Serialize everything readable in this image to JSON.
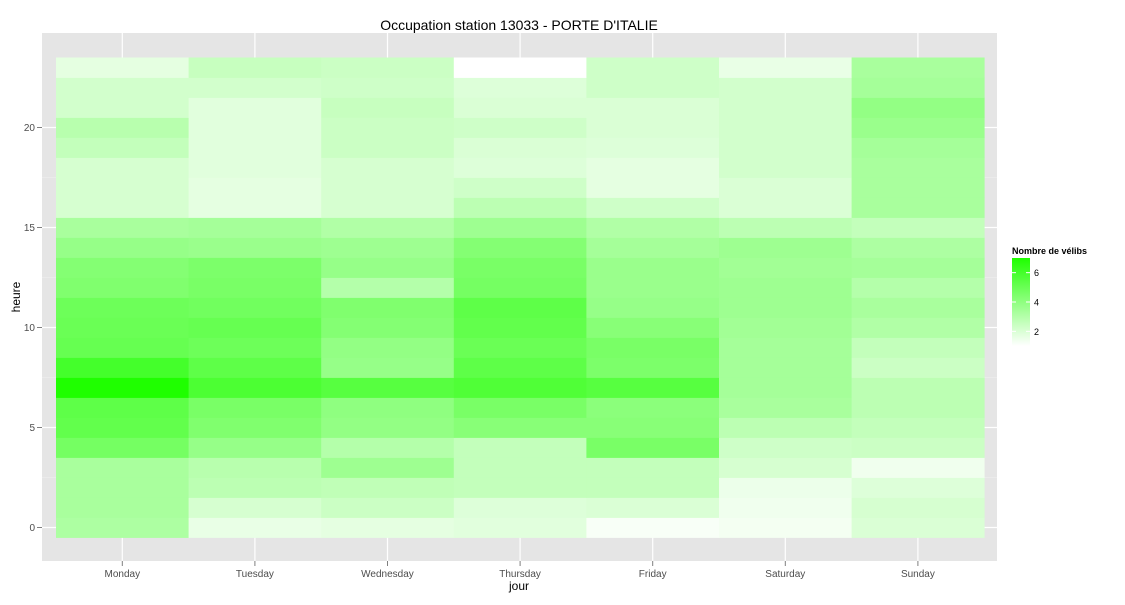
{
  "chart_data": {
    "type": "heatmap",
    "title": "Occupation station 13033 - PORTE D'ITALIE",
    "xlabel": "jour",
    "ylabel": "heure",
    "categories": [
      "Monday",
      "Tuesday",
      "Wednesday",
      "Thursday",
      "Friday",
      "Saturday",
      "Sunday"
    ],
    "hours": [
      0,
      1,
      2,
      3,
      4,
      5,
      6,
      7,
      8,
      9,
      10,
      11,
      12,
      13,
      14,
      15,
      16,
      17,
      18,
      19,
      20,
      21,
      22,
      23
    ],
    "y_ticks": [
      0,
      5,
      10,
      15,
      20
    ],
    "grid": true,
    "legend": {
      "title": "Nombre de vélibs",
      "position": "right",
      "ticks": [
        2,
        4,
        6
      ],
      "min": 1,
      "max": 7,
      "color_low": "#ffffff",
      "color_high": "#1fff00"
    },
    "values": [
      [
        3.2,
        1.6,
        1.7,
        1.8,
        1.2,
        1.3,
        2.0
      ],
      [
        3.3,
        2.1,
        2.4,
        1.9,
        2.0,
        1.4,
        2.1
      ],
      [
        3.3,
        2.8,
        2.7,
        2.6,
        2.6,
        1.5,
        1.9
      ],
      [
        3.3,
        2.9,
        3.6,
        2.6,
        2.6,
        2.1,
        1.4
      ],
      [
        4.7,
        3.8,
        3.0,
        2.6,
        4.6,
        2.3,
        2.4
      ],
      [
        5.2,
        4.4,
        3.9,
        4.2,
        4.2,
        2.8,
        2.6
      ],
      [
        5.3,
        4.6,
        4.0,
        4.6,
        4.1,
        3.3,
        2.8
      ],
      [
        7.0,
        5.8,
        5.5,
        5.7,
        5.5,
        3.4,
        2.8
      ],
      [
        6.0,
        5.3,
        3.8,
        5.3,
        4.5,
        3.4,
        2.4
      ],
      [
        5.1,
        4.9,
        3.9,
        5.0,
        4.6,
        3.4,
        2.6
      ],
      [
        5.0,
        5.1,
        4.3,
        5.2,
        4.2,
        3.5,
        3.1
      ],
      [
        4.9,
        4.8,
        4.4,
        5.3,
        3.8,
        3.6,
        3.3
      ],
      [
        4.4,
        4.6,
        3.0,
        4.7,
        3.7,
        3.6,
        3.0
      ],
      [
        4.3,
        4.5,
        3.8,
        4.6,
        3.7,
        3.5,
        3.4
      ],
      [
        3.8,
        3.7,
        3.6,
        4.3,
        3.4,
        3.6,
        3.2
      ],
      [
        3.3,
        3.4,
        3.1,
        3.6,
        3.1,
        2.8,
        2.6
      ],
      [
        2.1,
        1.7,
        2.1,
        2.8,
        2.3,
        2.0,
        3.3
      ],
      [
        2.1,
        1.7,
        2.1,
        2.3,
        1.7,
        2.0,
        3.3
      ],
      [
        2.1,
        1.8,
        2.1,
        1.9,
        1.7,
        2.2,
        3.3
      ],
      [
        2.6,
        1.8,
        2.4,
        2.0,
        1.9,
        2.2,
        3.4
      ],
      [
        2.9,
        1.8,
        2.4,
        2.3,
        2.0,
        2.2,
        3.7
      ],
      [
        2.2,
        1.8,
        2.5,
        2.0,
        2.0,
        2.2,
        3.9
      ],
      [
        2.2,
        2.2,
        2.3,
        1.9,
        2.3,
        2.2,
        3.4
      ],
      [
        1.7,
        2.5,
        2.4,
        1.0,
        2.3,
        1.6,
        3.3
      ]
    ]
  }
}
